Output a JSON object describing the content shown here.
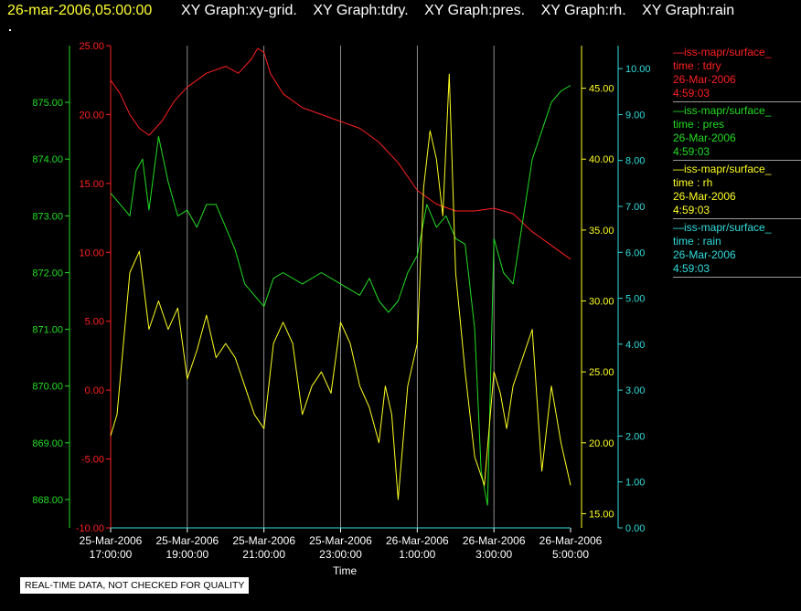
{
  "header": {
    "timestamp": "26-mar-2006,05:00:00",
    "graph_titles": [
      "XY Graph:xy-grid.",
      "XY Graph:tdry.",
      "XY Graph:pres.",
      "XY Graph:rh.",
      "XY Graph:rain"
    ]
  },
  "banner": "REAL-TIME DATA, NOT CHECKED FOR QUALITY",
  "colors": {
    "tdry": "#ff2020",
    "pres": "#22dd22",
    "rh": "#ffff22",
    "rain": "#33dddd",
    "grid": "#b0b0b0"
  },
  "legend": [
    {
      "line1": "—iss-mapr/surface_",
      "line2": "time : tdry",
      "line3": "26-Mar-2006",
      "line4": "4:59:03",
      "color": "#ff2020"
    },
    {
      "line1": "—iss-mapr/surface_",
      "line2": "time : pres",
      "line3": "26-Mar-2006",
      "line4": "4:59:03",
      "color": "#22dd22"
    },
    {
      "line1": "—iss-mapr/surface_",
      "line2": "time : rh",
      "line3": "26-Mar-2006",
      "line4": "4:59:03",
      "color": "#ffff22"
    },
    {
      "line1": "—iss-mapr/surface_",
      "line2": "time : rain",
      "line3": "26-Mar-2006",
      "line4": "4:59:03",
      "color": "#33dddd"
    }
  ],
  "chart_data": {
    "type": "line",
    "xlabel": "Time",
    "x_ticks": [
      {
        "date": "25-Mar-2006",
        "time": "17:00:00"
      },
      {
        "date": "25-Mar-2006",
        "time": "19:00:00"
      },
      {
        "date": "25-Mar-2006",
        "time": "21:00:00"
      },
      {
        "date": "25-Mar-2006",
        "time": "23:00:00"
      },
      {
        "date": "26-Mar-2006",
        "time": "1:00:00"
      },
      {
        "date": "26-Mar-2006",
        "time": "3:00:00"
      },
      {
        "date": "26-Mar-2006",
        "time": "5:00:00"
      }
    ],
    "x_range": [
      "25-Mar-2006 17:00:00",
      "26-Mar-2006 05:00:00"
    ],
    "grid": true,
    "axes": {
      "tdry": {
        "side": "left",
        "ylim": [
          -10,
          25
        ],
        "ticks": [
          "25.00",
          "20.00",
          "15.00",
          "10.00",
          "5.00",
          "0.00",
          "-5.00",
          "-10.00"
        ]
      },
      "pres": {
        "side": "left",
        "ylim": [
          867.5,
          876
        ],
        "ticks": [
          "875.00",
          "874.00",
          "873.00",
          "872.00",
          "871.00",
          "870.00",
          "869.00",
          "868.00"
        ]
      },
      "rh": {
        "side": "right",
        "ylim": [
          14,
          48
        ],
        "ticks": [
          "45.00",
          "40.00",
          "35.00",
          "30.00",
          "25.00",
          "20.00",
          "15.00"
        ]
      },
      "rain": {
        "side": "right",
        "ylim": [
          0,
          10.5
        ],
        "ticks": [
          "10.00",
          "9.00",
          "8.00",
          "7.00",
          "6.00",
          "5.00",
          "4.00",
          "3.00",
          "2.00",
          "1.00",
          "0.00"
        ]
      }
    },
    "series": [
      {
        "key": "tdry",
        "x": [
          "25-Mar-2006 17:00",
          "25-Mar-2006 17:15",
          "25-Mar-2006 17:30",
          "25-Mar-2006 17:45",
          "25-Mar-2006 18:00",
          "25-Mar-2006 18:20",
          "25-Mar-2006 18:40",
          "25-Mar-2006 19:00",
          "25-Mar-2006 19:30",
          "25-Mar-2006 20:00",
          "25-Mar-2006 20:20",
          "25-Mar-2006 20:40",
          "25-Mar-2006 20:50",
          "25-Mar-2006 21:00",
          "25-Mar-2006 21:10",
          "25-Mar-2006 21:30",
          "25-Mar-2006 22:00",
          "25-Mar-2006 22:30",
          "25-Mar-2006 23:00",
          "25-Mar-2006 23:30",
          "26-Mar-2006 00:00",
          "26-Mar-2006 00:30",
          "26-Mar-2006 01:00",
          "26-Mar-2006 01:30",
          "26-Mar-2006 02:00",
          "26-Mar-2006 02:30",
          "26-Mar-2006 03:00",
          "26-Mar-2006 03:30",
          "26-Mar-2006 04:00",
          "26-Mar-2006 04:30",
          "26-Mar-2006 05:00"
        ],
        "y": [
          22.5,
          21.5,
          20.0,
          19.0,
          18.5,
          19.5,
          21.0,
          22.0,
          23.0,
          23.5,
          23.0,
          24.0,
          24.8,
          24.5,
          23.0,
          21.5,
          20.5,
          20.0,
          19.5,
          19.0,
          18.0,
          16.5,
          14.5,
          13.5,
          13.0,
          13.0,
          13.2,
          12.8,
          11.5,
          10.5,
          9.5
        ]
      },
      {
        "key": "pres",
        "x": [
          "25-Mar-2006 17:00",
          "25-Mar-2006 17:15",
          "25-Mar-2006 17:30",
          "25-Mar-2006 17:40",
          "25-Mar-2006 17:50",
          "25-Mar-2006 18:00",
          "25-Mar-2006 18:15",
          "25-Mar-2006 18:30",
          "25-Mar-2006 18:45",
          "25-Mar-2006 19:00",
          "25-Mar-2006 19:15",
          "25-Mar-2006 19:30",
          "25-Mar-2006 19:45",
          "25-Mar-2006 20:00",
          "25-Mar-2006 20:15",
          "25-Mar-2006 20:30",
          "25-Mar-2006 20:45",
          "25-Mar-2006 21:00",
          "25-Mar-2006 21:15",
          "25-Mar-2006 21:30",
          "25-Mar-2006 22:00",
          "25-Mar-2006 22:30",
          "25-Mar-2006 23:00",
          "25-Mar-2006 23:30",
          "25-Mar-2006 23:45",
          "26-Mar-2006 00:00",
          "26-Mar-2006 00:15",
          "26-Mar-2006 00:30",
          "26-Mar-2006 00:45",
          "26-Mar-2006 01:00",
          "26-Mar-2006 01:15",
          "26-Mar-2006 01:30",
          "26-Mar-2006 01:45",
          "26-Mar-2006 02:00",
          "26-Mar-2006 02:15",
          "26-Mar-2006 02:30",
          "26-Mar-2006 02:40",
          "26-Mar-2006 02:50",
          "26-Mar-2006 03:00",
          "26-Mar-2006 03:15",
          "26-Mar-2006 03:30",
          "26-Mar-2006 03:45",
          "26-Mar-2006 04:00",
          "26-Mar-2006 04:15",
          "26-Mar-2006 04:30",
          "26-Mar-2006 04:45",
          "26-Mar-2006 05:00"
        ],
        "y": [
          873.4,
          873.2,
          873.0,
          873.8,
          874.0,
          873.1,
          874.4,
          873.6,
          873.0,
          873.1,
          872.8,
          873.2,
          873.2,
          872.8,
          872.4,
          871.8,
          871.6,
          871.4,
          871.9,
          872.0,
          871.8,
          872.0,
          871.8,
          871.6,
          871.9,
          871.5,
          871.3,
          871.5,
          872.0,
          872.3,
          873.2,
          872.8,
          873.0,
          872.6,
          872.5,
          871.0,
          868.5,
          867.9,
          872.6,
          872.0,
          871.8,
          872.9,
          874.0,
          874.5,
          875.0,
          875.2,
          875.3
        ]
      },
      {
        "key": "rh",
        "x": [
          "25-Mar-2006 17:00",
          "25-Mar-2006 17:10",
          "25-Mar-2006 17:20",
          "25-Mar-2006 17:30",
          "25-Mar-2006 17:45",
          "25-Mar-2006 18:00",
          "25-Mar-2006 18:15",
          "25-Mar-2006 18:30",
          "25-Mar-2006 18:45",
          "25-Mar-2006 19:00",
          "25-Mar-2006 19:15",
          "25-Mar-2006 19:30",
          "25-Mar-2006 19:45",
          "25-Mar-2006 20:00",
          "25-Mar-2006 20:15",
          "25-Mar-2006 20:30",
          "25-Mar-2006 20:45",
          "25-Mar-2006 21:00",
          "25-Mar-2006 21:15",
          "25-Mar-2006 21:30",
          "25-Mar-2006 21:45",
          "25-Mar-2006 22:00",
          "25-Mar-2006 22:15",
          "25-Mar-2006 22:30",
          "25-Mar-2006 22:45",
          "25-Mar-2006 23:00",
          "25-Mar-2006 23:15",
          "25-Mar-2006 23:30",
          "25-Mar-2006 23:45",
          "26-Mar-2006 00:00",
          "26-Mar-2006 00:10",
          "26-Mar-2006 00:20",
          "26-Mar-2006 00:30",
          "26-Mar-2006 00:45",
          "26-Mar-2006 01:00",
          "26-Mar-2006 01:10",
          "26-Mar-2006 01:20",
          "26-Mar-2006 01:30",
          "26-Mar-2006 01:40",
          "26-Mar-2006 01:50",
          "26-Mar-2006 02:00",
          "26-Mar-2006 02:15",
          "26-Mar-2006 02:30",
          "26-Mar-2006 02:45",
          "26-Mar-2006 03:00",
          "26-Mar-2006 03:10",
          "26-Mar-2006 03:20",
          "26-Mar-2006 03:30",
          "26-Mar-2006 03:45",
          "26-Mar-2006 04:00",
          "26-Mar-2006 04:15",
          "26-Mar-2006 04:30",
          "26-Mar-2006 04:45",
          "26-Mar-2006 05:00"
        ],
        "y": [
          20.5,
          22.0,
          27.0,
          32.0,
          33.5,
          28.0,
          30.0,
          28.0,
          29.5,
          24.5,
          26.5,
          29.0,
          26.0,
          27.0,
          26.0,
          24.0,
          22.0,
          21.0,
          27.0,
          28.5,
          27.0,
          22.0,
          24.0,
          25.0,
          23.5,
          28.5,
          27.0,
          24.0,
          22.5,
          20.0,
          24.0,
          22.0,
          16.0,
          24.0,
          27.0,
          38.0,
          42.0,
          40.0,
          36.0,
          46.0,
          32.0,
          25.0,
          19.0,
          17.0,
          25.0,
          23.5,
          21.0,
          24.0,
          26.0,
          28.0,
          18.0,
          24.0,
          20.0,
          17.0
        ]
      },
      {
        "key": "rain",
        "x": [
          "25-Mar-2006 17:00",
          "26-Mar-2006 05:00"
        ],
        "y": [
          0.0,
          0.0
        ]
      }
    ]
  }
}
